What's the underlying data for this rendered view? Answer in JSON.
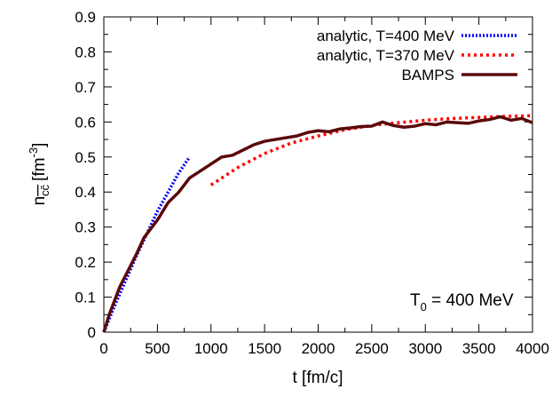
{
  "chart_data": {
    "type": "line",
    "xlabel": "t [fm/c]",
    "ylabel_parts": {
      "base": "n",
      "sub": "cc̄",
      "unit": "[fm",
      "sup": "-3",
      "close": "]"
    },
    "xlim": [
      0,
      4000
    ],
    "ylim": [
      0,
      0.9
    ],
    "xticks": [
      0,
      500,
      1000,
      1500,
      2000,
      2500,
      3000,
      3500,
      4000
    ],
    "yticks": [
      "0",
      "0.1",
      "0.2",
      "0.3",
      "0.4",
      "0.5",
      "0.6",
      "0.7",
      "0.8",
      "0.9"
    ],
    "grid": false,
    "legend_position": "top-right",
    "annotation": {
      "base": "T",
      "sub": "0",
      "rest": " = 400 MeV"
    },
    "series": [
      {
        "name": "analytic, T=400 MeV",
        "color": "#0000ff",
        "style": "dotted",
        "x": [
          0,
          100,
          200,
          300,
          400,
          500,
          600,
          700,
          800
        ],
        "y": [
          0,
          0.075,
          0.145,
          0.215,
          0.28,
          0.345,
          0.4,
          0.455,
          0.5
        ]
      },
      {
        "name": "analytic, T=370 MeV",
        "color": "#ff0000",
        "style": "dotted",
        "x": [
          1000,
          1250,
          1500,
          1750,
          2000,
          2250,
          2500,
          2750,
          3000,
          3250,
          3500,
          3750,
          4000
        ],
        "y": [
          0.42,
          0.47,
          0.51,
          0.54,
          0.56,
          0.578,
          0.59,
          0.598,
          0.605,
          0.61,
          0.613,
          0.616,
          0.618
        ]
      },
      {
        "name": "BAMPS",
        "color": "#5a0a0a",
        "style": "solid",
        "x": [
          0,
          50,
          100,
          150,
          200,
          250,
          300,
          375,
          450,
          500,
          600,
          700,
          800,
          900,
          1000,
          1100,
          1200,
          1300,
          1400,
          1500,
          1600,
          1700,
          1800,
          1900,
          2000,
          2100,
          2200,
          2300,
          2400,
          2500,
          2600,
          2700,
          2800,
          2900,
          3000,
          3100,
          3200,
          3300,
          3400,
          3500,
          3600,
          3700,
          3800,
          3900,
          4000
        ],
        "y": [
          0,
          0.05,
          0.09,
          0.13,
          0.16,
          0.19,
          0.22,
          0.27,
          0.3,
          0.32,
          0.37,
          0.4,
          0.44,
          0.46,
          0.48,
          0.5,
          0.505,
          0.52,
          0.535,
          0.545,
          0.55,
          0.555,
          0.56,
          0.57,
          0.575,
          0.572,
          0.58,
          0.583,
          0.587,
          0.588,
          0.6,
          0.59,
          0.585,
          0.588,
          0.595,
          0.592,
          0.6,
          0.598,
          0.596,
          0.603,
          0.607,
          0.615,
          0.605,
          0.61,
          0.598
        ]
      }
    ]
  }
}
